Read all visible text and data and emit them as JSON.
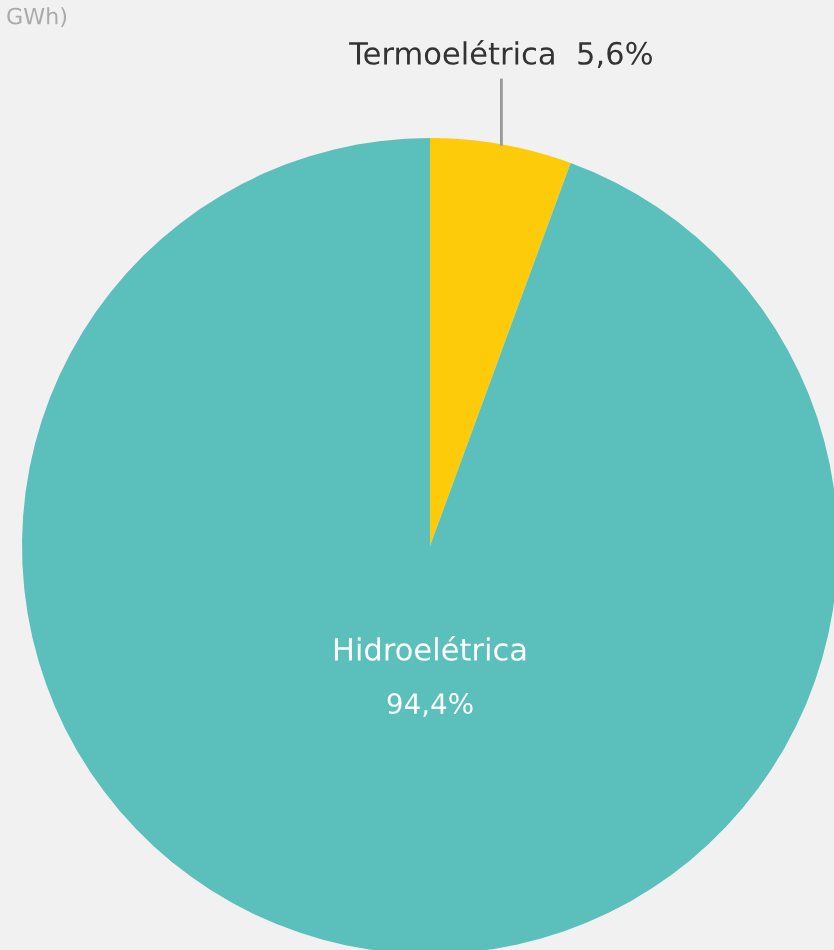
{
  "chart_data": {
    "type": "pie",
    "subtitle": "GWh)",
    "categories": [
      "Termoelétrica",
      "Hidroelétrica"
    ],
    "values": [
      5.6,
      94.4
    ],
    "colors": [
      "#fecb0a",
      "#5bbfbc"
    ],
    "value_labels": [
      "5,6%",
      "94,4%"
    ]
  }
}
